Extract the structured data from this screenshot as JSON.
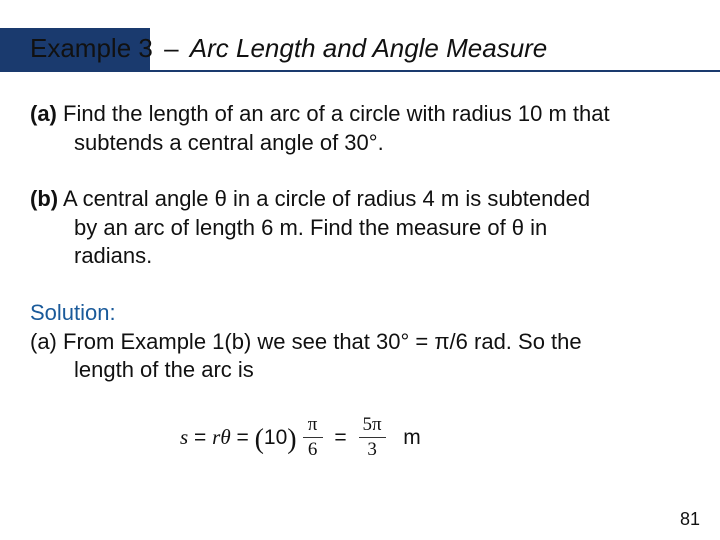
{
  "title": {
    "prefix": "Example 3",
    "separator": "–",
    "subtitle": "Arc Length and Angle Measure",
    "accent_color": "#1a3a6e",
    "underline_color": "#1a3a6e",
    "font_size": 26
  },
  "body": {
    "font_size": 22,
    "text_color": "#111111",
    "paragraphs": [
      {
        "label": "(a)",
        "lines": [
          "Find the length of an arc of a circle with radius 10 m that",
          "subtends a central angle of 30°."
        ]
      },
      {
        "label": "(b)",
        "lines": [
          "A central angle θ in a circle of radius 4 m is subtended",
          "by an arc of length 6 m. Find the measure of θ in",
          "radians."
        ]
      }
    ],
    "solution": {
      "heading": "Solution:",
      "heading_color": "#1a5a9a",
      "label": "(a)",
      "lines": [
        "From Example 1(b) we see that 30° = π/6 rad. So the",
        "length of the arc is"
      ]
    },
    "equation": {
      "lhs_var1": "s",
      "lhs_var2": "r",
      "lhs_var3": "θ",
      "paren_val": "10",
      "frac1_num": "π",
      "frac1_den": "6",
      "frac2_num": "5π",
      "frac2_den": "3",
      "unit": "m"
    }
  },
  "page_number": "81",
  "background_color": "#ffffff"
}
